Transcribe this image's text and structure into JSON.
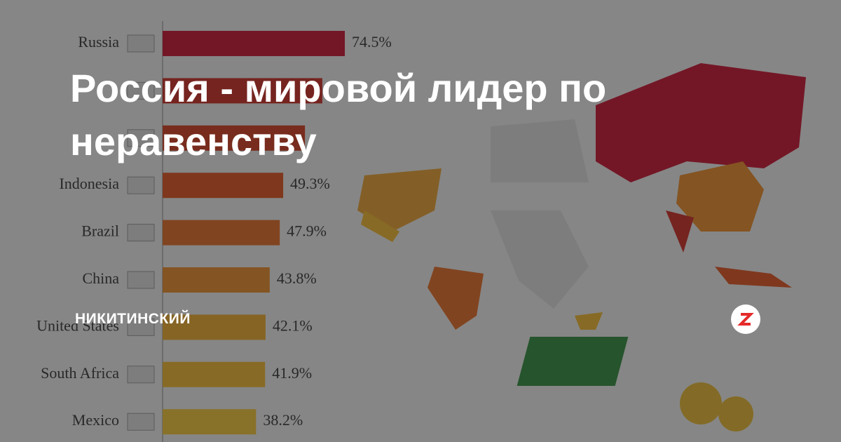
{
  "title": "Россия - мировой лидер по неравенству",
  "author": "НИКИТИНСКИЙ",
  "chart_data": {
    "type": "bar",
    "orientation": "horizontal",
    "categories": [
      "Russia",
      null,
      null,
      "Indonesia",
      "Brazil",
      "China",
      "United States",
      "South Africa",
      "Mexico"
    ],
    "values": [
      74.5,
      65.3,
      58.2,
      49.3,
      47.9,
      43.8,
      42.1,
      41.9,
      38.2
    ],
    "value_labels": [
      "74.5%",
      null,
      null,
      "49.3%",
      "47.9%",
      "43.8%",
      "42.1%",
      "41.9%",
      "38.2%"
    ],
    "colors": [
      "#c8102e",
      "#cc2a22",
      "#d23a1c",
      "#e0531e",
      "#e56a22",
      "#ea8a26",
      "#eeab2a",
      "#f0b62c",
      "#f2c434"
    ]
  }
}
